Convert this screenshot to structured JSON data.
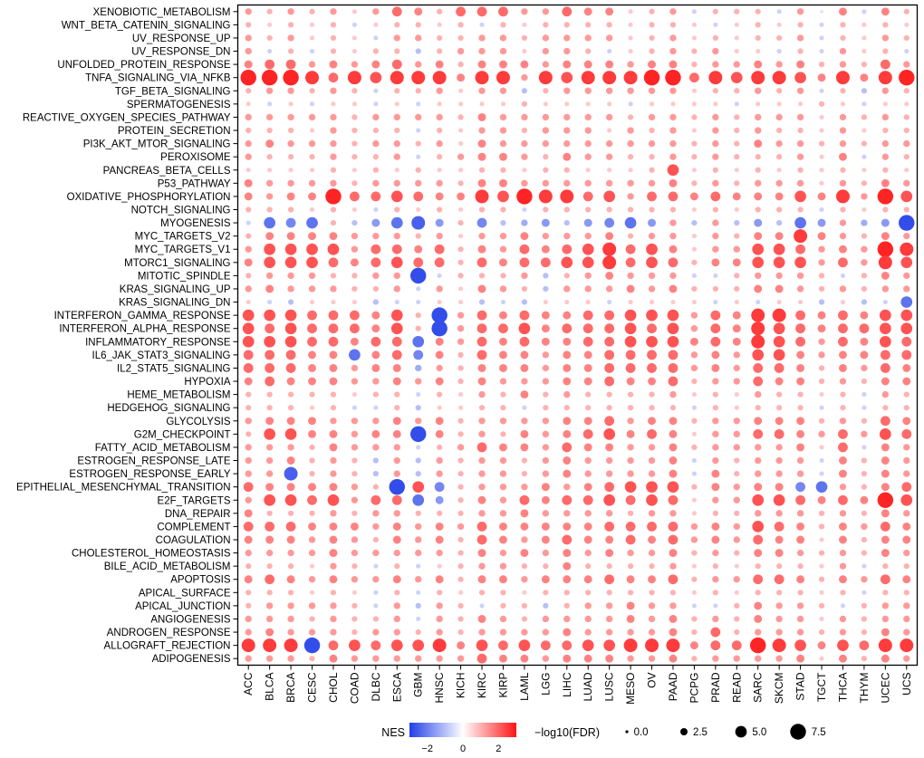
{
  "legend": {
    "nes_label": "NES",
    "fdr_label": "−log10(FDR)"
  },
  "chart_data": {
    "type": "bubble-matrix",
    "title": "",
    "xlabel": "",
    "ylabel": "",
    "color_variable": "NES",
    "size_variable": "-log10(FDR)",
    "columns": [
      "ACC",
      "BLCA",
      "BRCA",
      "CESC",
      "CHOL",
      "COAD",
      "DLBC",
      "ESCA",
      "GBM",
      "HNSC",
      "KICH",
      "KIRC",
      "KIRP",
      "LAML",
      "LGG",
      "LIHC",
      "LUAD",
      "LUSC",
      "MESO",
      "OV",
      "PAAD",
      "PCPG",
      "PRAD",
      "READ",
      "SARC",
      "SKCM",
      "STAD",
      "TGCT",
      "THCA",
      "THYM",
      "UCEC",
      "UCS"
    ],
    "rows": [
      "XENOBIOTIC_METABOLISM",
      "WNT_BETA_CATENIN_SIGNALING",
      "UV_RESPONSE_UP",
      "UV_RESPONSE_DN",
      "UNFOLDED_PROTEIN_RESPONSE",
      "TNFA_SIGNALING_VIA_NFKB",
      "TGF_BETA_SIGNALING",
      "SPERMATOGENESIS",
      "REACTIVE_OXYGEN_SPECIES_PATHWAY",
      "PROTEIN_SECRETION",
      "PI3K_AKT_MTOR_SIGNALING",
      "PEROXISOME",
      "PANCREAS_BETA_CELLS",
      "P53_PATHWAY",
      "OXIDATIVE_PHOSPHORYLATION",
      "NOTCH_SIGNALING",
      "MYOGENESIS",
      "MYC_TARGETS_V2",
      "MYC_TARGETS_V1",
      "MTORC1_SIGNALING",
      "MITOTIC_SPINDLE",
      "KRAS_SIGNALING_UP",
      "KRAS_SIGNALING_DN",
      "INTERFERON_GAMMA_RESPONSE",
      "INTERFERON_ALPHA_RESPONSE",
      "INFLAMMATORY_RESPONSE",
      "IL6_JAK_STAT3_SIGNALING",
      "IL2_STAT5_SIGNALING",
      "HYPOXIA",
      "HEME_METABOLISM",
      "HEDGEHOG_SIGNALING",
      "GLYCOLYSIS",
      "G2M_CHECKPOINT",
      "FATTY_ACID_METABOLISM",
      "ESTROGEN_RESPONSE_LATE",
      "ESTROGEN_RESPONSE_EARLY",
      "EPITHELIAL_MESENCHYMAL_TRANSITION",
      "E2F_TARGETS",
      "DNA_REPAIR",
      "COMPLEMENT",
      "COAGULATION",
      "CHOLESTEROL_HOMEOSTASIS",
      "BILE_ACID_METABOLISM",
      "APOPTOSIS",
      "APICAL_SURFACE",
      "APICAL_JUNCTION",
      "ANGIOGENESIS",
      "ANDROGEN_RESPONSE",
      "ALLOGRAFT_REJECTION",
      "ADIPOGENESIS"
    ],
    "color_scale": {
      "min": -3,
      "max": 3,
      "ticks": [
        -2,
        0,
        2
      ],
      "tick_labels": [
        "−2",
        "0",
        "2"
      ],
      "negative_color": "#2340e8",
      "positive_color": "#ff1414",
      "mid_color": "#ffffff"
    },
    "size_legend": {
      "values": [
        0,
        2.5,
        5,
        7.5
      ],
      "labels": [
        "0.0",
        "2.5",
        "5.0",
        "7.5"
      ]
    },
    "encoding": {
      "0": {
        "nes": 0.0,
        "fdr": 0.1
      },
      "1": {
        "nes": 0.4,
        "fdr": 0.5
      },
      "2": {
        "nes": 0.7,
        "fdr": 1.0
      },
      "3": {
        "nes": 1.0,
        "fdr": 1.6
      },
      "4": {
        "nes": 1.3,
        "fdr": 2.2
      },
      "5": {
        "nes": 1.6,
        "fdr": 3.0
      },
      "6": {
        "nes": 1.9,
        "fdr": 4.0
      },
      "7": {
        "nes": 2.2,
        "fdr": 5.0
      },
      "8": {
        "nes": 2.5,
        "fdr": 6.2
      },
      "9": {
        "nes": 2.8,
        "fdr": 7.5
      },
      "a": {
        "nes": -0.4,
        "fdr": 0.5
      },
      "b": {
        "nes": -0.7,
        "fdr": 1.0
      },
      "c": {
        "nes": -1.0,
        "fdr": 1.6
      },
      "d": {
        "nes": -1.3,
        "fdr": 2.2
      },
      "e": {
        "nes": -1.6,
        "fdr": 3.0
      },
      "f": {
        "nes": -1.9,
        "fdr": 4.0
      },
      "g": {
        "nes": -2.2,
        "fdr": 5.0
      },
      "h": {
        "nes": -2.5,
        "fdr": 6.2
      },
      "i": {
        "nes": -2.8,
        "fdr": 7.5
      }
    },
    "matrix": [
      "434342465366644655234b333b4a5b53",
      "32323b23323b3233332332b2323b3232",
      "434232b44334434444234232334b3243",
      "4b3b3233c34442443b2343422b3b423b",
      "56645456453555455545534454534364",
      "99986878885884878889968788758589",
      "344343b334244c3444444233434b3c43",
      "2b2b22b2b222232222b2222b22232b22",
      "44444344443544444434434344424343",
      "33324333b32443444243424343324233",
      "45444344342544444444434354434344",
      "43334334b34554354433434333425b43",
      "22223232322332332223723232323232",
      "54444344443554444444534344424354",
      "54559667655879886746656555758497",
      "333232b323233b3333333232333b3233",
      "bgfg3ceghe3fcdecefge4c4cecge4dei",
      "35555444342445444534424355854354",
      "47777466563546567867524477645498",
      "57776567663656677867635577746487",
      "34443344ib3334c345444bb34443b354",
      "45444334b42543c44454533355434344",
      "2bc222cbb22cbc222b2222b2b22c2cbg",
      "777666573i4656556677746588656577",
      "767666573i4667566676746587656677",
      "77766566g54656556677756587646576",
      "66655g56f53655455666645477545566",
      "66655455d43555455666645466535465",
      "56555445453544455655634465534355",
      "33333233b32435343333423243323b43",
      "33323bb3c2233b3333333b32333b3b33",
      "45554445453444455645534455534365",
      "37755455i53435456756524466546476",
      "44435444b34655465544534444526b54",
      "445343c4c434434544445b43444b5354",
      "44h343c4c434434544445b53444b5354",
      "6555543i7f3444545677735455fg4356",
      "47767466ge3546566767624477656597",
      "53334344333445444434423344434354",
      "66655545454655555666645476535465",
      "55545435453654565565645465525355",
      "44445444443545454544534355434354",
      "333243b3b23443353333423233324b33",
      "56545445453554555655634466535465",
      "333232b3b32332333333323233323b33",
      "344443b4c43b33c344544bb35443b344",
      "44434334b43543444454534354424344",
      "45444344343444454444536344434354",
      "888i6767785767667788856698757688",
      "44435444444655455544534444525354"
    ]
  }
}
